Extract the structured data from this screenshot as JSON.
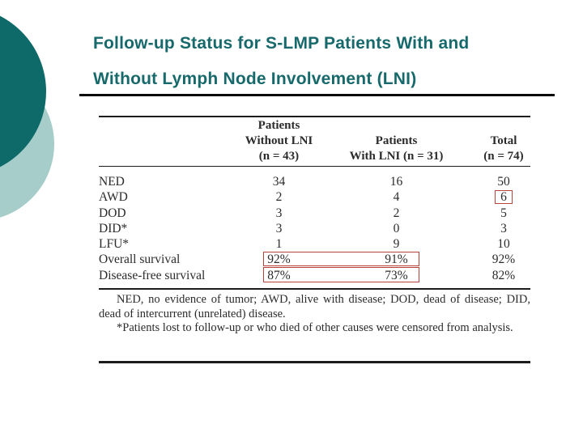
{
  "slide": {
    "title_line1": "Follow-up Status for S-LMP Patients With and",
    "title_line2": "Without Lymph Node Involvement (LNI)"
  },
  "table": {
    "headers": {
      "col_without_lni": "Patients\nWithout LNI\n(n = 43)",
      "col_with_lni": "Patients\nWith LNI (n = 31)",
      "col_total": "Total\n(n = 74)"
    },
    "rows": [
      {
        "label": "NED",
        "without_lni": "34",
        "with_lni": "16",
        "total": "50"
      },
      {
        "label": "AWD",
        "without_lni": "2",
        "with_lni": "4",
        "total": "6"
      },
      {
        "label": "DOD",
        "without_lni": "3",
        "with_lni": "2",
        "total": "5"
      },
      {
        "label": "DID*",
        "without_lni": "3",
        "with_lni": "0",
        "total": "3"
      },
      {
        "label": "LFU*",
        "without_lni": "1",
        "with_lni": "9",
        "total": "10"
      },
      {
        "label": "Overall survival",
        "without_lni": "92%",
        "with_lni": "91%",
        "total": "92%"
      },
      {
        "label": "Disease-free survival",
        "without_lni": "87%",
        "with_lni": "73%",
        "total": "82%"
      }
    ],
    "footnotes": [
      "NED, no evidence of tumor; AWD, alive with disease; DOD, dead of disease; DID, dead of intercurrent (unrelated) disease.",
      "*Patients lost to follow-up or who died of other causes were censored from analysis."
    ],
    "annotations": {
      "boxed_cell": "AWD total (6)",
      "boxed_rows": [
        "Overall survival 92% / 91%",
        "Disease-free survival 87% / 73%"
      ],
      "annotation_color": "#b8423c"
    }
  },
  "colors": {
    "title_teal": "#17696b",
    "circle_dark_teal": "#0d6a68",
    "circle_light_teal": "#a6cdca",
    "table_text": "#2b2b2b",
    "rule_black": "#1c1c1c"
  }
}
